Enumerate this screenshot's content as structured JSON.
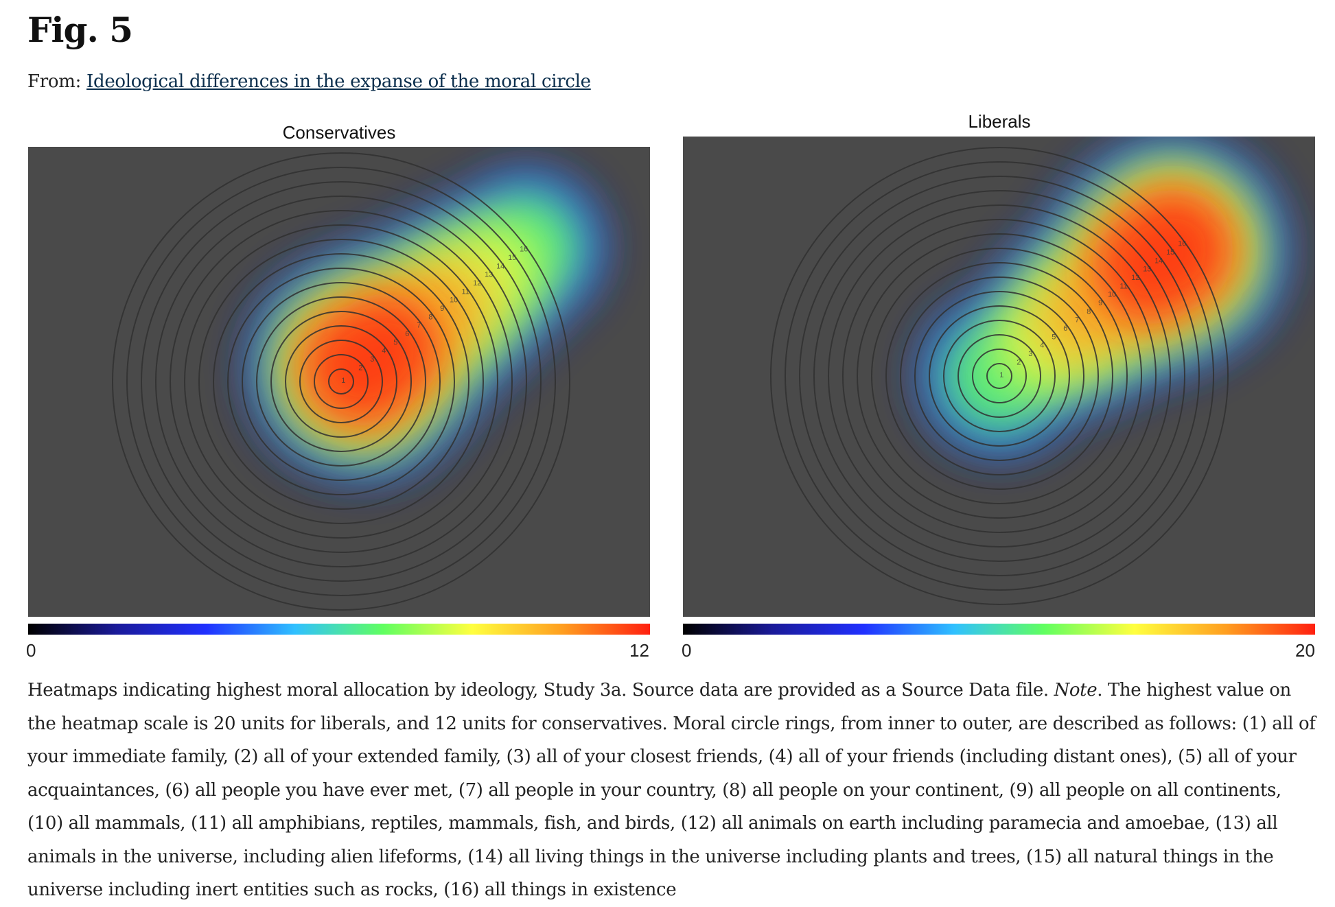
{
  "figure": {
    "title": "Fig. 5",
    "from_label": "From:",
    "from_link": "Ideological differences in the expanse of the moral circle"
  },
  "chart_data": [
    {
      "type": "heatmap",
      "title": "Conservatives",
      "colorbar": {
        "min": 0,
        "max": 12,
        "min_label": "0",
        "max_label": "12"
      },
      "ring_labels": [
        "1",
        "2",
        "3",
        "4",
        "5",
        "6",
        "7",
        "8",
        "9",
        "10",
        "11",
        "12",
        "13",
        "14",
        "15",
        "16"
      ],
      "hotspots": [
        {
          "ring": 2,
          "value": 12
        },
        {
          "ring": 4,
          "value": 11
        },
        {
          "ring": 6,
          "value": 9
        },
        {
          "ring": 9,
          "value": 8
        },
        {
          "ring": 11,
          "value": 7
        },
        {
          "ring": 13,
          "value": 6
        },
        {
          "ring": 16,
          "value": 5
        }
      ],
      "colormap": [
        "#000000",
        "#1a1a9a",
        "#2030ff",
        "#30c0ff",
        "#60ff60",
        "#ffff40",
        "#ffa020",
        "#ff2010"
      ]
    },
    {
      "type": "heatmap",
      "title": "Liberals",
      "colorbar": {
        "min": 0,
        "max": 20,
        "min_label": "0",
        "max_label": "20"
      },
      "ring_labels": [
        "1",
        "2",
        "3",
        "4",
        "5",
        "6",
        "7",
        "8",
        "9",
        "10",
        "11",
        "12",
        "13",
        "14",
        "15",
        "16"
      ],
      "hotspots": [
        {
          "ring": 1,
          "value": 9
        },
        {
          "ring": 4,
          "value": 10
        },
        {
          "ring": 7,
          "value": 13
        },
        {
          "ring": 10,
          "value": 15
        },
        {
          "ring": 13,
          "value": 19
        },
        {
          "ring": 15,
          "value": 20
        },
        {
          "ring": 16,
          "value": 14
        }
      ],
      "colormap": [
        "#000000",
        "#1a1a9a",
        "#2030ff",
        "#30c0ff",
        "#60ff60",
        "#ffff40",
        "#ffa020",
        "#ff2010"
      ]
    }
  ],
  "caption": {
    "part1": "Heatmaps indicating highest moral allocation by ideology, Study 3a. Source data are provided as a Source Data file. ",
    "note": "Note",
    "part2": ". The highest value on the heatmap scale is 20 units for liberals, and 12 units for conservatives. Moral circle rings, from inner to outer, are described as follows: (1) all of your immediate family, (2) all of your extended family, (3) all of your closest friends, (4) all of your friends (including distant ones), (5) all of your acquaintances, (6) all people you have ever met, (7) all people in your country, (8) all people on your continent, (9) all people on all continents, (10) all mammals, (11) all amphibians, reptiles, mammals, fish, and birds, (12) all animals on earth including paramecia and amoebae, (13) all animals in the universe, including alien lifeforms, (14) all living things in the universe including plants and trees, (15) all natural things in the universe including inert entities such as rocks, (16) all things in existence"
  }
}
